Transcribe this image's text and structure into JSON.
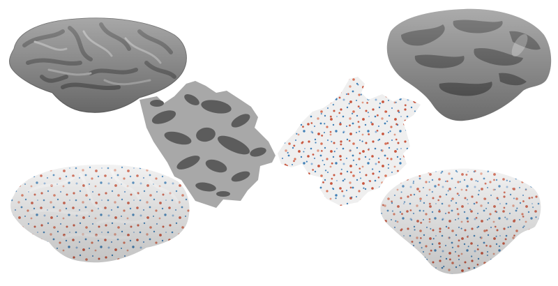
{
  "figure": {
    "panels": [
      {
        "id": "pial-gray",
        "surface": "pial",
        "shading": "curvature-gray"
      },
      {
        "id": "flat-gray",
        "surface": "flat",
        "shading": "curvature-gray"
      },
      {
        "id": "flat-noise",
        "surface": "flat",
        "shading": "noise-red-blue"
      },
      {
        "id": "infl-gray",
        "surface": "inflated",
        "shading": "curvature-gray"
      },
      {
        "id": "pial-noise",
        "surface": "pial",
        "shading": "noise-red-blue"
      },
      {
        "id": "infl-noise",
        "surface": "inflated",
        "shading": "noise-red-blue"
      }
    ],
    "colors": {
      "dark_gray": "#5a5a5a",
      "light_gray": "#a8a8a8",
      "mid_gray": "#7c7c7c",
      "noise_base": "#eeeeee",
      "noise_red": "#c8553d",
      "noise_blue": "#3f7fb6",
      "background": "#ffffff"
    }
  }
}
